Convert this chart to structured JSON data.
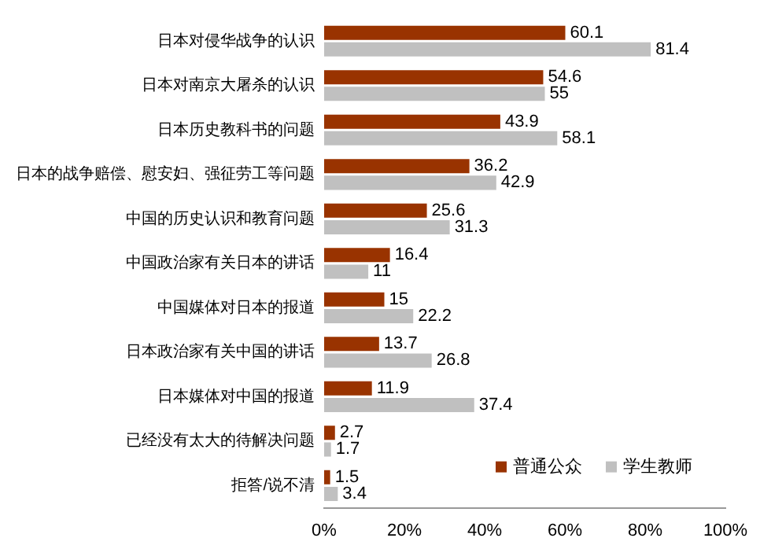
{
  "chart_data": {
    "type": "bar",
    "orientation": "horizontal",
    "categories": [
      "日本对侵华战争的认识",
      "日本对南京大屠杀的认识",
      "日本历史教科书的问题",
      "日本的战争赔偿、慰安妇、强征劳工等问题",
      "中国的历史认识和教育问题",
      "中国政治家有关日本的讲话",
      "中国媒体对日本的报道",
      "日本政治家有关中国的讲话",
      "日本媒体对中国的报道",
      "已经没有太大的待解决问题",
      "拒答/说不清"
    ],
    "series": [
      {
        "name": "普通公众",
        "color": "#993300",
        "values": [
          60.1,
          54.6,
          43.9,
          36.2,
          25.6,
          16.4,
          15,
          13.7,
          11.9,
          2.7,
          1.5
        ]
      },
      {
        "name": "学生教师",
        "color": "#c0c0c0",
        "values": [
          81.4,
          55,
          58.1,
          42.9,
          31.3,
          11,
          22.2,
          26.8,
          37.4,
          1.7,
          3.4
        ]
      }
    ],
    "xlim": [
      0,
      100
    ],
    "xticks": [
      {
        "value": 0,
        "label": "0%"
      },
      {
        "value": 20,
        "label": "20%"
      },
      {
        "value": 40,
        "label": "40%"
      },
      {
        "value": 60,
        "label": "60%"
      },
      {
        "value": 80,
        "label": "80%"
      },
      {
        "value": 100,
        "label": "100%"
      }
    ],
    "data_labels": true,
    "grid": false,
    "legend": "bottom right"
  }
}
